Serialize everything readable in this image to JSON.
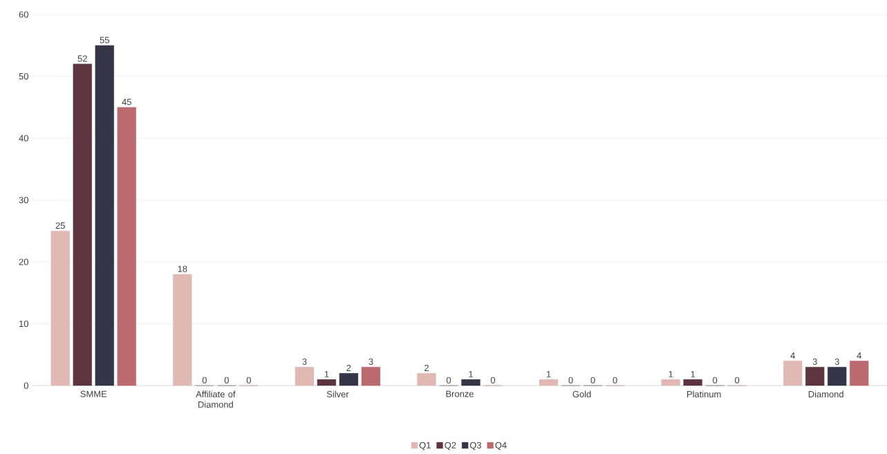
{
  "chart_data": {
    "type": "bar",
    "categories": [
      "SMME",
      "Affiliate of Diamond",
      "Silver",
      "Bronze",
      "Gold",
      "Platinum",
      "Diamond"
    ],
    "series": [
      {
        "name": "Q1",
        "color": "#e0b9b5",
        "values": [
          25,
          18,
          3,
          2,
          1,
          1,
          4
        ]
      },
      {
        "name": "Q2",
        "color": "#5c3540",
        "values": [
          52,
          0,
          1,
          0,
          0,
          1,
          3
        ]
      },
      {
        "name": "Q3",
        "color": "#353548",
        "values": [
          55,
          0,
          2,
          1,
          0,
          0,
          3
        ]
      },
      {
        "name": "Q4",
        "color": "#bb6b6f",
        "values": [
          45,
          0,
          3,
          0,
          0,
          0,
          4
        ]
      }
    ],
    "ylim": [
      0,
      60
    ],
    "yticks": [
      0,
      10,
      20,
      30,
      40,
      50,
      60
    ],
    "grid": "y",
    "legend": "bottom",
    "data_labels": true
  }
}
